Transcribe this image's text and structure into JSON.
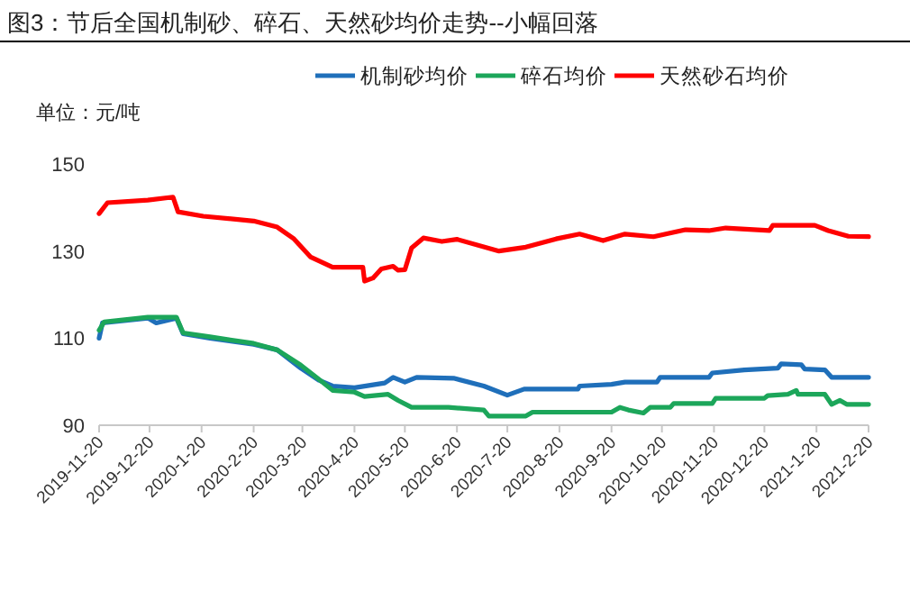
{
  "chart_data": {
    "type": "line",
    "title": "图3：节后全国机制砂、碎石、天然砂均价走势--小幅回落",
    "ylabel": "单位：元/吨",
    "xlim": [
      "2019-11-20",
      "2021-02-20"
    ],
    "ylim": [
      90,
      150
    ],
    "yticks": [
      90,
      110,
      130,
      150
    ],
    "xticks": [
      {
        "value": "2019-11-20",
        "label": "2019-11-20"
      },
      {
        "value": "2019-12-20",
        "label": "2019-12-20"
      },
      {
        "value": "2020-01-20",
        "label": "2020-1-20"
      },
      {
        "value": "2020-02-20",
        "label": "2020-2-20"
      },
      {
        "value": "2020-03-20",
        "label": "2020-3-20"
      },
      {
        "value": "2020-04-20",
        "label": "2020-4-20"
      },
      {
        "value": "2020-05-20",
        "label": "2020-5-20"
      },
      {
        "value": "2020-06-20",
        "label": "2020-6-20"
      },
      {
        "value": "2020-07-20",
        "label": "2020-7-20"
      },
      {
        "value": "2020-08-20",
        "label": "2020-8-20"
      },
      {
        "value": "2020-09-20",
        "label": "2020-9-20"
      },
      {
        "value": "2020-10-20",
        "label": "2020-10-20"
      },
      {
        "value": "2020-11-20",
        "label": "2020-11-20"
      },
      {
        "value": "2020-12-20",
        "label": "2020-12-20"
      },
      {
        "value": "2021-01-20",
        "label": "2021-1-20"
      },
      {
        "value": "2021-02-20",
        "label": "2021-2-20"
      }
    ],
    "legend": "top",
    "line_style": "solid",
    "series": [
      {
        "name": "机制砂均价",
        "color": "#1f6fba",
        "x": [
          "2019-11-20",
          "2019-11-22",
          "2019-12-19",
          "2019-12-24",
          "2020-01-05",
          "2020-01-09",
          "2020-01-25",
          "2020-02-20",
          "2020-03-05",
          "2020-03-19",
          "2020-03-30",
          "2020-04-07",
          "2020-04-20",
          "2020-05-08",
          "2020-05-13",
          "2020-05-20",
          "2020-05-27",
          "2020-06-18",
          "2020-07-06",
          "2020-07-20",
          "2020-07-30",
          "2020-08-31",
          "2020-09-01",
          "2020-09-20",
          "2020-09-28",
          "2020-10-17",
          "2020-10-19",
          "2020-11-17",
          "2020-11-19",
          "2020-12-08",
          "2020-12-28",
          "2020-12-30",
          "2021-01-11",
          "2021-01-13",
          "2021-01-25",
          "2021-01-29",
          "2021-02-20"
        ],
        "values": [
          110,
          113.5,
          114.6,
          113.5,
          114.6,
          111,
          110,
          108.6,
          107.3,
          103.1,
          100.3,
          99,
          98.6,
          99.7,
          101,
          99.9,
          101,
          100.8,
          99,
          96.9,
          98.3,
          98.3,
          99,
          99.4,
          99.9,
          99.9,
          101,
          101,
          102,
          102.7,
          103.1,
          104.1,
          103.9,
          102.9,
          102.7,
          101,
          101
        ]
      },
      {
        "name": "碎石均价",
        "color": "#1ca65a",
        "x": [
          "2019-11-20",
          "2019-11-23",
          "2019-12-19",
          "2020-01-05",
          "2020-01-09",
          "2020-01-25",
          "2020-02-20",
          "2020-03-05",
          "2020-03-19",
          "2020-03-30",
          "2020-04-07",
          "2020-04-20",
          "2020-04-26",
          "2020-05-10",
          "2020-05-16",
          "2020-05-24",
          "2020-06-15",
          "2020-07-06",
          "2020-07-09",
          "2020-07-31",
          "2020-08-04",
          "2020-09-20",
          "2020-09-25",
          "2020-09-30",
          "2020-10-09",
          "2020-10-13",
          "2020-10-25",
          "2020-10-27",
          "2020-11-19",
          "2020-11-21",
          "2020-12-20",
          "2020-12-22",
          "2021-01-03",
          "2021-01-08",
          "2021-01-09",
          "2021-01-25",
          "2021-01-29",
          "2021-02-03",
          "2021-02-07",
          "2021-02-20"
        ],
        "values": [
          111.8,
          113.7,
          114.8,
          114.8,
          111.2,
          110.3,
          108.8,
          107.3,
          103.8,
          100.5,
          98,
          97.6,
          96.6,
          97.1,
          95.7,
          94.1,
          94.1,
          93.5,
          92.1,
          92.1,
          93,
          93,
          94.1,
          93.5,
          92.8,
          94.1,
          94.1,
          95,
          95,
          96.2,
          96.2,
          96.8,
          97.1,
          98,
          97.1,
          97.1,
          94.8,
          95.7,
          94.8,
          94.8
        ]
      },
      {
        "name": "天然砂石均价",
        "color": "#ff0000",
        "x": [
          "2019-11-20",
          "2019-11-25",
          "2019-12-19",
          "2020-01-03",
          "2020-01-06",
          "2020-01-21",
          "2020-02-20",
          "2020-03-05",
          "2020-03-15",
          "2020-03-25",
          "2020-04-07",
          "2020-04-25",
          "2020-04-26",
          "2020-05-01",
          "2020-05-06",
          "2020-05-13",
          "2020-05-16",
          "2020-05-20",
          "2020-05-24",
          "2020-05-31",
          "2020-06-11",
          "2020-06-20",
          "2020-07-15",
          "2020-07-31",
          "2020-08-18",
          "2020-09-01",
          "2020-09-15",
          "2020-09-28",
          "2020-10-15",
          "2020-11-03",
          "2020-11-17",
          "2020-11-27",
          "2020-12-23",
          "2020-12-25",
          "2021-01-19",
          "2021-01-27",
          "2021-02-08",
          "2021-02-20"
        ],
        "values": [
          138.6,
          141.1,
          141.7,
          142.4,
          139,
          138,
          136.9,
          135.5,
          132.8,
          128.6,
          126.3,
          126.3,
          123.1,
          123.8,
          125.9,
          126.5,
          125.6,
          125.7,
          130.7,
          133,
          132.2,
          132.7,
          130,
          130.9,
          132.8,
          133.9,
          132.4,
          133.9,
          133.3,
          134.9,
          134.7,
          135.3,
          134.7,
          135.9,
          135.9,
          134.7,
          133.4,
          133.3
        ]
      }
    ]
  }
}
